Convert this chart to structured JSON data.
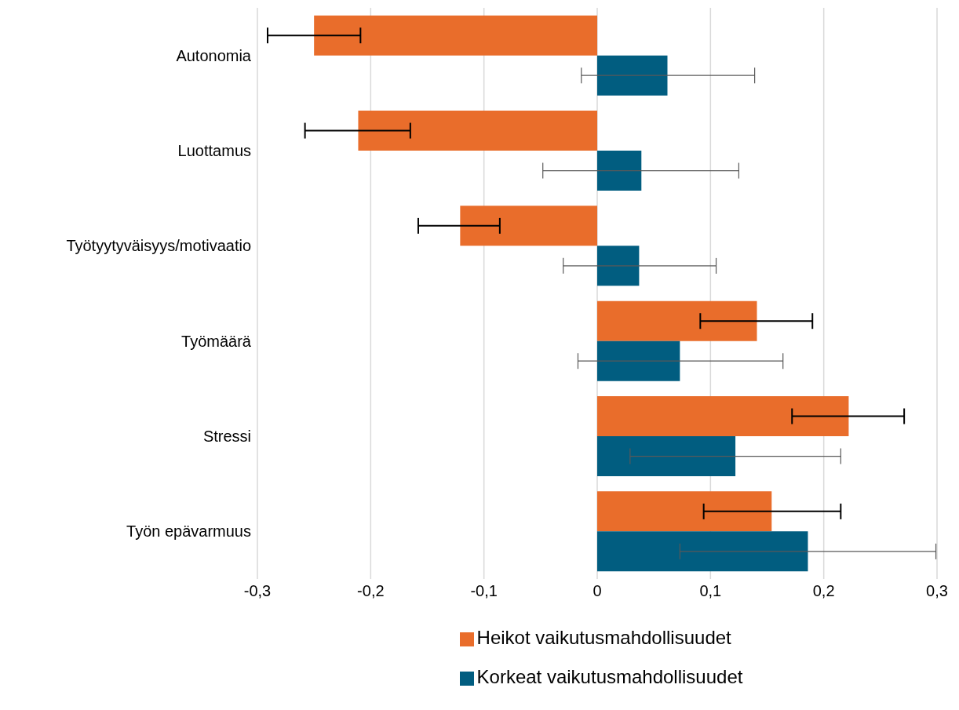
{
  "chart_data": {
    "type": "bar",
    "orientation": "horizontal",
    "categories": [
      "Autonomia",
      "Luottamus",
      "Työtyytyväisyys/motivaatio",
      "Työmäärä",
      "Stressi",
      "Työn epävarmuus"
    ],
    "series": [
      {
        "name": "Heikot vaikutusmahdollisuudet",
        "color": "#e96d2b",
        "values": [
          -0.25,
          -0.211,
          -0.121,
          0.141,
          0.222,
          0.154
        ],
        "errors": [
          [
            -0.291,
            -0.209
          ],
          [
            -0.258,
            -0.165
          ],
          [
            -0.158,
            -0.086
          ],
          [
            0.091,
            0.19
          ],
          [
            0.172,
            0.271
          ],
          [
            0.094,
            0.215
          ]
        ]
      },
      {
        "name": "Korkeat vaikutusmahdollisuudet",
        "color": "#015d80",
        "values": [
          0.062,
          0.039,
          0.037,
          0.073,
          0.122,
          0.186
        ],
        "errors": [
          [
            -0.014,
            0.139
          ],
          [
            -0.048,
            0.125
          ],
          [
            -0.03,
            0.105
          ],
          [
            -0.017,
            0.164
          ],
          [
            0.029,
            0.215
          ],
          [
            0.073,
            0.299
          ]
        ]
      }
    ],
    "xlim": [
      -0.3,
      0.3
    ],
    "xticks": [
      {
        "value": -0.3,
        "label": "-0,3"
      },
      {
        "value": -0.2,
        "label": "-0,2"
      },
      {
        "value": -0.1,
        "label": "-0,1"
      },
      0,
      {
        "value": 0.1,
        "label": "0,1"
      },
      {
        "value": 0.2,
        "label": "0,2"
      },
      {
        "value": 0.3,
        "label": "0,3"
      }
    ],
    "grid": "x",
    "legend": "bottom"
  }
}
